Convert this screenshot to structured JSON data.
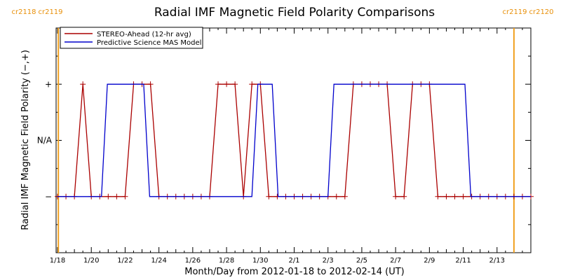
{
  "chart_data": {
    "type": "line",
    "title": "Radial IMF Magnetic Field Polarity Comparisons",
    "xlabel": "Month/Day from 2012-01-18 to 2012-02-14 (UT)",
    "ylabel": "Radial IMF Magnetic Field Polarity (−,+)",
    "x_range_days": [
      0,
      28
    ],
    "x_ticks": [
      {
        "day": 0,
        "label": "1/18"
      },
      {
        "day": 2,
        "label": "1/20"
      },
      {
        "day": 4,
        "label": "1/22"
      },
      {
        "day": 6,
        "label": "1/24"
      },
      {
        "day": 8,
        "label": "1/26"
      },
      {
        "day": 10,
        "label": "1/28"
      },
      {
        "day": 12,
        "label": "1/30"
      },
      {
        "day": 14,
        "label": "2/1"
      },
      {
        "day": 16,
        "label": "2/3"
      },
      {
        "day": 18,
        "label": "2/5"
      },
      {
        "day": 20,
        "label": "2/7"
      },
      {
        "day": 22,
        "label": "2/9"
      },
      {
        "day": 24,
        "label": "2/11"
      },
      {
        "day": 26,
        "label": "2/13"
      }
    ],
    "y_range": [
      -2,
      2
    ],
    "y_ticks": [
      {
        "value": 1,
        "label": "+"
      },
      {
        "value": 0,
        "label": "N/A"
      },
      {
        "value": -1,
        "label": "−"
      }
    ],
    "carrington_rotations": [
      {
        "day": 0.05,
        "left_label": "cr2118",
        "right_label": "cr2119",
        "label_side": "left"
      },
      {
        "day": 27.0,
        "left_label": "cr2119",
        "right_label": "cr2120",
        "label_side": "right"
      }
    ],
    "legend": {
      "placement": "top-left"
    },
    "series": [
      {
        "name": "STEREO-Ahead (12-hr avg)",
        "color": "#aa0000",
        "marker": "+",
        "points": [
          [
            0,
            -1
          ],
          [
            0.5,
            -1
          ],
          [
            1,
            -1
          ],
          [
            1.5,
            1
          ],
          [
            2,
            -1
          ],
          [
            2.5,
            -1
          ],
          [
            3,
            -1
          ],
          [
            3.5,
            -1
          ],
          [
            4,
            -1
          ],
          [
            4.5,
            1
          ],
          [
            5,
            1
          ],
          [
            5.5,
            1
          ],
          [
            6,
            -1
          ],
          [
            6.5,
            -1
          ],
          [
            7,
            -1
          ],
          [
            7.5,
            -1
          ],
          [
            8,
            -1
          ],
          [
            8.5,
            -1
          ],
          [
            9,
            -1
          ],
          [
            9.5,
            1
          ],
          [
            10,
            1
          ],
          [
            10.5,
            1
          ],
          [
            11,
            -1
          ],
          [
            11.5,
            1
          ],
          [
            12,
            1
          ],
          [
            12.5,
            -1
          ],
          [
            13,
            -1
          ],
          [
            13.5,
            -1
          ],
          [
            14,
            -1
          ],
          [
            14.5,
            -1
          ],
          [
            15,
            -1
          ],
          [
            15.5,
            -1
          ],
          [
            16,
            -1
          ],
          [
            16.5,
            -1
          ],
          [
            17,
            -1
          ],
          [
            17.5,
            1
          ],
          [
            18,
            1
          ],
          [
            18.5,
            1
          ],
          [
            19,
            1
          ],
          [
            19.5,
            1
          ],
          [
            20,
            -1
          ],
          [
            20.5,
            -1
          ],
          [
            21,
            1
          ],
          [
            21.5,
            1
          ],
          [
            22,
            1
          ],
          [
            22.5,
            -1
          ],
          [
            23,
            -1
          ],
          [
            23.5,
            -1
          ],
          [
            24,
            -1
          ],
          [
            24.5,
            -1
          ],
          [
            25,
            -1
          ],
          [
            25.5,
            -1
          ],
          [
            26,
            -1
          ],
          [
            26.5,
            -1
          ],
          [
            27,
            -1
          ],
          [
            27.5,
            -1
          ],
          [
            28,
            -1
          ]
        ]
      },
      {
        "name": "Predictive Science MAS Model",
        "color": "#0000cc",
        "marker": "none",
        "points": [
          [
            0,
            -1
          ],
          [
            2.6,
            -1
          ],
          [
            2.95,
            1
          ],
          [
            5.1,
            1
          ],
          [
            5.45,
            -1
          ],
          [
            11.5,
            -1
          ],
          [
            11.85,
            1
          ],
          [
            12.7,
            1
          ],
          [
            13.05,
            -1
          ],
          [
            16,
            -1
          ],
          [
            16.35,
            1
          ],
          [
            24.1,
            1
          ],
          [
            24.45,
            -1
          ],
          [
            28,
            -1
          ]
        ]
      }
    ]
  }
}
